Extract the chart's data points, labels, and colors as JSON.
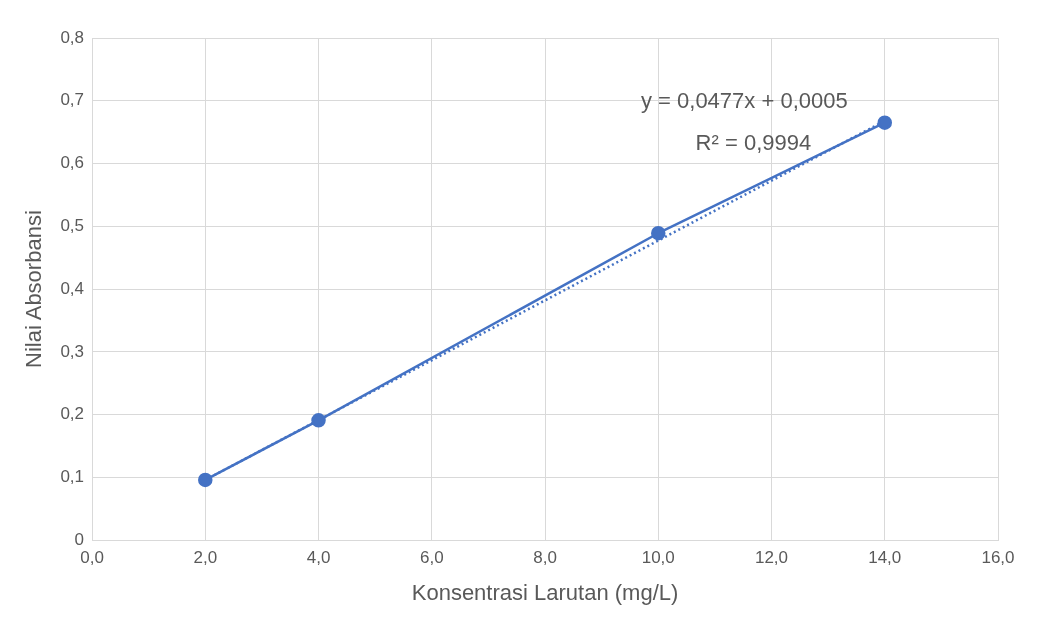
{
  "chart_data": {
    "type": "line",
    "xlabel": "Konsentrasi Larutan (mg/L)",
    "ylabel": "Nilai Absorbansi",
    "x": [
      2,
      4,
      10,
      14
    ],
    "series": [
      {
        "color": "#4472c4",
        "values": [
          0.096,
          0.191,
          0.489,
          0.665
        ],
        "marker": "circle",
        "line_style": "solid"
      },
      {
        "color": "#4472c4",
        "x": [
          2,
          14
        ],
        "values": [
          0.096,
          0.668
        ],
        "marker": "none",
        "line_style": "dotted"
      }
    ],
    "xlim": [
      0,
      16
    ],
    "xticks": [
      {
        "value": 0,
        "label": "0,0"
      },
      {
        "value": 2,
        "label": "2,0"
      },
      {
        "value": 4,
        "label": "4,0"
      },
      {
        "value": 6,
        "label": "6,0"
      },
      {
        "value": 8,
        "label": "8,0"
      },
      {
        "value": 10,
        "label": "10,0"
      },
      {
        "value": 12,
        "label": "12,0"
      },
      {
        "value": 14,
        "label": "14,0"
      },
      {
        "value": 16,
        "label": "16,0"
      }
    ],
    "ylim": [
      0,
      0.8
    ],
    "yticks": [
      0,
      {
        "value": 0.1,
        "label": "0,1"
      },
      {
        "value": 0.2,
        "label": "0,2"
      },
      {
        "value": 0.3,
        "label": "0,3"
      },
      {
        "value": 0.4,
        "label": "0,4"
      },
      {
        "value": 0.5,
        "label": "0,5"
      },
      {
        "value": 0.6,
        "label": "0,6"
      },
      {
        "value": 0.7,
        "label": "0,7"
      },
      {
        "value": 0.8,
        "label": "0,8"
      }
    ],
    "grid": true,
    "legend": false,
    "annotations": [
      "y = 0,0477x + 0,0005",
      "R² = 0,9994"
    ]
  }
}
